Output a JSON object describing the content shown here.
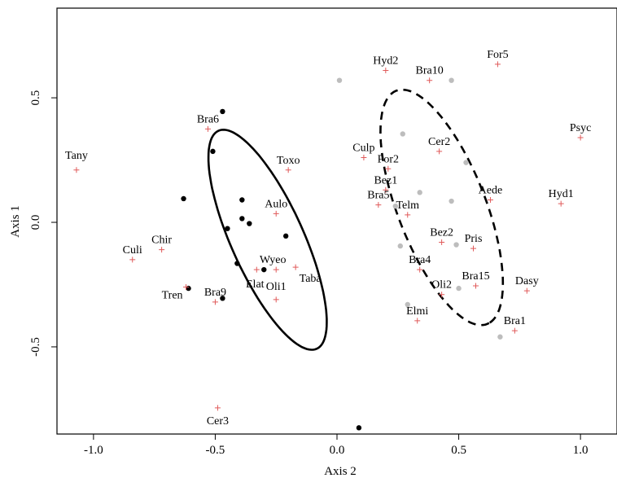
{
  "chart_data": {
    "type": "scatter",
    "xlabel": "Axis 2",
    "ylabel": "Axis 1",
    "xlim": [
      -1.15,
      1.15
    ],
    "ylim": [
      -0.85,
      0.86
    ],
    "xticks": [
      -1.0,
      -0.5,
      0.0,
      0.5,
      1.0
    ],
    "xtick_labels": [
      "-1.0",
      "-0.5",
      "0.0",
      "0.5",
      "1.0"
    ],
    "yticks": [
      -0.5,
      0.0,
      0.5
    ],
    "ytick_labels": [
      "-0.5",
      "0.0",
      "0.5"
    ],
    "grid": false,
    "legend": "none",
    "colors": {
      "taxa_marker": "#e05a5a",
      "group1_points": "#000000",
      "group2_points": "#bdbdbd"
    },
    "taxa": [
      {
        "label": "Tany",
        "x": -1.07,
        "y": 0.21
      },
      {
        "label": "Culi",
        "x": -0.84,
        "y": -0.15
      },
      {
        "label": "Chir",
        "x": -0.72,
        "y": -0.11
      },
      {
        "label": "Tren",
        "x": -0.62,
        "y": -0.26
      },
      {
        "label": "Bra6",
        "x": -0.53,
        "y": 0.375
      },
      {
        "label": "Bra9",
        "x": -0.5,
        "y": -0.32
      },
      {
        "label": "Cer3",
        "x": -0.49,
        "y": -0.745
      },
      {
        "label": "Elat",
        "x": -0.33,
        "y": -0.19
      },
      {
        "label": "Wyeo",
        "x": -0.25,
        "y": -0.19
      },
      {
        "label": "Oli1",
        "x": -0.25,
        "y": -0.31
      },
      {
        "label": "Aulo",
        "x": -0.25,
        "y": 0.035
      },
      {
        "label": "Taba",
        "x": -0.17,
        "y": -0.18
      },
      {
        "label": "Toxo",
        "x": -0.2,
        "y": 0.21
      },
      {
        "label": "Hyd2",
        "x": 0.2,
        "y": 0.61
      },
      {
        "label": "Bra10",
        "x": 0.38,
        "y": 0.57
      },
      {
        "label": "For5",
        "x": 0.66,
        "y": 0.635
      },
      {
        "label": "Psyc",
        "x": 1.0,
        "y": 0.34
      },
      {
        "label": "Culp",
        "x": 0.11,
        "y": 0.26
      },
      {
        "label": "Cer2",
        "x": 0.42,
        "y": 0.285
      },
      {
        "label": "For2",
        "x": 0.21,
        "y": 0.215
      },
      {
        "label": "Bez1",
        "x": 0.2,
        "y": 0.13
      },
      {
        "label": "Bra5",
        "x": 0.17,
        "y": 0.07
      },
      {
        "label": "Telm",
        "x": 0.29,
        "y": 0.03
      },
      {
        "label": "Aede",
        "x": 0.63,
        "y": 0.09
      },
      {
        "label": "Hyd1",
        "x": 0.92,
        "y": 0.075
      },
      {
        "label": "Bez2",
        "x": 0.43,
        "y": -0.08
      },
      {
        "label": "Pris",
        "x": 0.56,
        "y": -0.105
      },
      {
        "label": "Bra4",
        "x": 0.34,
        "y": -0.19
      },
      {
        "label": "Bra15",
        "x": 0.57,
        "y": -0.255
      },
      {
        "label": "Oli2",
        "x": 0.43,
        "y": -0.29
      },
      {
        "label": "Dasy",
        "x": 0.78,
        "y": -0.275
      },
      {
        "label": "Elmi",
        "x": 0.33,
        "y": -0.395
      },
      {
        "label": "Bra1",
        "x": 0.73,
        "y": -0.435
      }
    ],
    "group1_points": [
      {
        "x": -0.47,
        "y": 0.445
      },
      {
        "x": -0.51,
        "y": 0.285
      },
      {
        "x": -0.63,
        "y": 0.095
      },
      {
        "x": -0.39,
        "y": 0.09
      },
      {
        "x": -0.39,
        "y": 0.015
      },
      {
        "x": -0.36,
        "y": -0.005
      },
      {
        "x": -0.45,
        "y": -0.025
      },
      {
        "x": -0.21,
        "y": -0.055
      },
      {
        "x": -0.41,
        "y": -0.165
      },
      {
        "x": -0.3,
        "y": -0.19
      },
      {
        "x": -0.61,
        "y": -0.265
      },
      {
        "x": -0.47,
        "y": -0.305
      },
      {
        "x": 0.09,
        "y": -0.825
      }
    ],
    "group2_points": [
      {
        "x": 0.01,
        "y": 0.57
      },
      {
        "x": 0.47,
        "y": 0.57
      },
      {
        "x": 0.27,
        "y": 0.355
      },
      {
        "x": 0.53,
        "y": 0.24
      },
      {
        "x": 0.34,
        "y": 0.12
      },
      {
        "x": 0.47,
        "y": 0.085
      },
      {
        "x": 0.24,
        "y": 0.065
      },
      {
        "x": 0.26,
        "y": -0.095
      },
      {
        "x": 0.49,
        "y": -0.09
      },
      {
        "x": 0.29,
        "y": -0.33
      },
      {
        "x": 0.5,
        "y": -0.265
      },
      {
        "x": 0.67,
        "y": -0.46
      }
    ],
    "ellipses": [
      {
        "group": "group1",
        "style": "solid",
        "center": [
          -0.285,
          -0.07
        ],
        "semi_major": 0.91,
        "semi_minor": 0.31,
        "angle_deg": -60
      },
      {
        "group": "group2",
        "style": "dashed",
        "center": [
          0.43,
          0.06
        ],
        "semi_major": 0.945,
        "semi_minor": 0.38,
        "angle_deg": -63
      }
    ]
  }
}
